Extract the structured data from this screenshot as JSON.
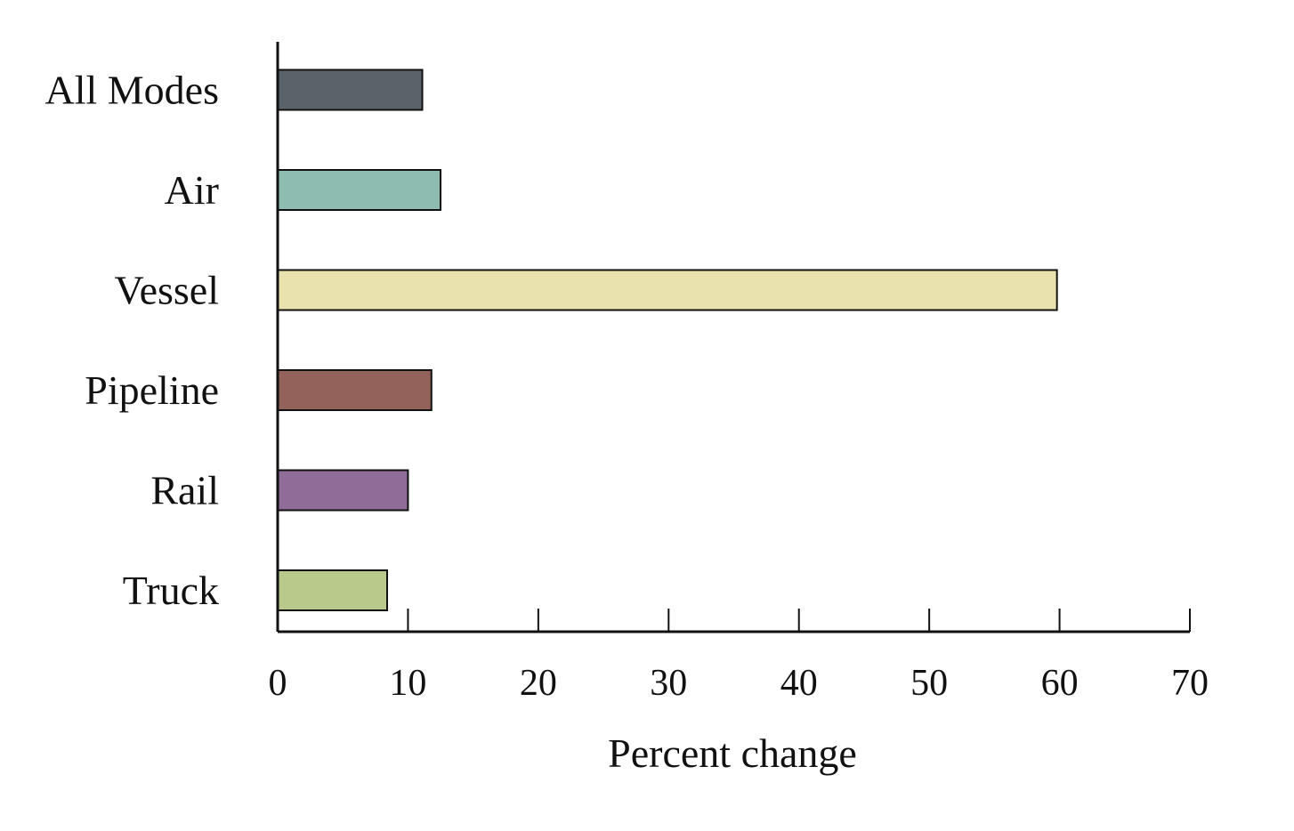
{
  "chart_data": {
    "type": "bar",
    "orientation": "horizontal",
    "title": "",
    "xlabel": "Percent change",
    "ylabel": "",
    "xlim": [
      0,
      70
    ],
    "xticks": [
      0,
      10,
      20,
      30,
      40,
      50,
      60,
      70
    ],
    "grid": false,
    "legend": "none",
    "categories": [
      "All Modes",
      "Air",
      "Vessel",
      "Pipeline",
      "Rail",
      "Truck"
    ],
    "values": [
      11.1,
      12.5,
      59.8,
      11.8,
      10.0,
      8.4
    ],
    "colors": [
      "#5b636a",
      "#8fbcb1",
      "#e9e2ae",
      "#93635b",
      "#8f6d98",
      "#b8c98b"
    ]
  }
}
